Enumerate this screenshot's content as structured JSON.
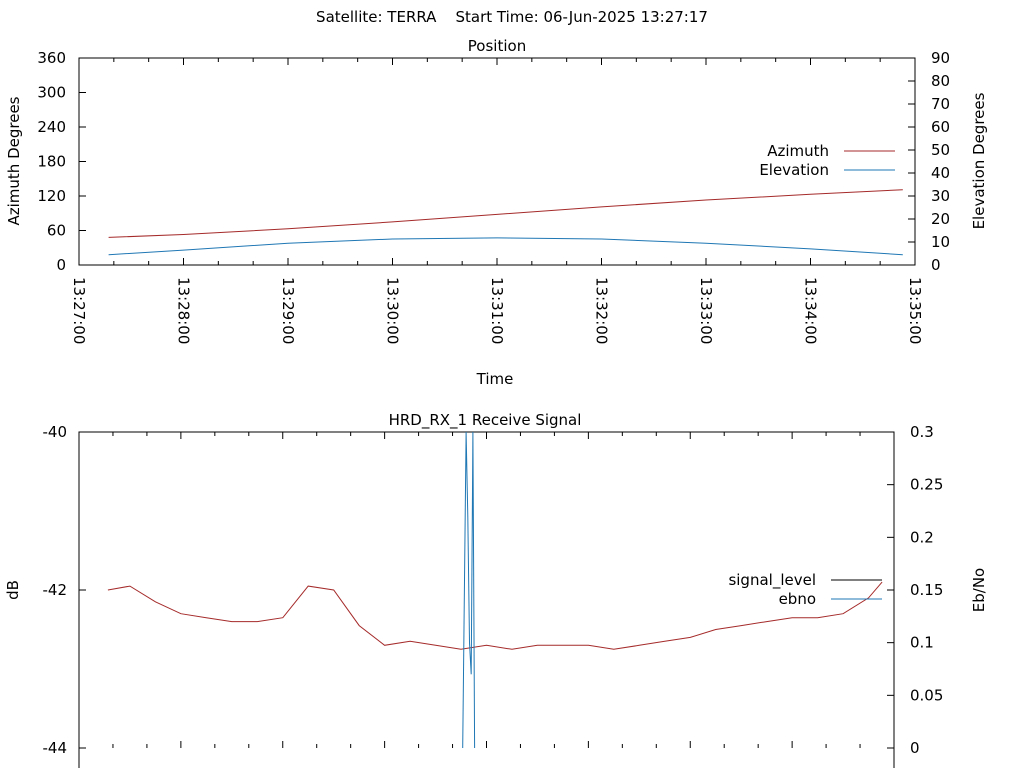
{
  "header": {
    "title": "Satellite: TERRA    Start Time: 06-Jun-2025 13:27:17"
  },
  "chart_data": [
    {
      "type": "line",
      "title": "Position",
      "xlabel": "Time",
      "ylabel": "Azimuth Degrees",
      "y2label": "Elevation Degrees",
      "x_ticks": [
        "13:27:00",
        "13:28:00",
        "13:29:00",
        "13:30:00",
        "13:31:00",
        "13:32:00",
        "13:33:00",
        "13:34:00",
        "13:35:00"
      ],
      "xlim": [
        "13:27:00",
        "13:35:00"
      ],
      "ylim": [
        0,
        360
      ],
      "y_ticks": [
        0,
        60,
        120,
        180,
        240,
        300,
        360
      ],
      "y2lim": [
        0,
        90
      ],
      "y2_ticks": [
        0,
        10,
        20,
        30,
        40,
        50,
        60,
        70,
        80,
        90
      ],
      "legend_position": "right",
      "series": [
        {
          "name": "Azimuth",
          "axis": "y",
          "color": "#a52a2a",
          "x": [
            "13:27:17",
            "13:28:00",
            "13:29:00",
            "13:30:00",
            "13:31:00",
            "13:32:00",
            "13:33:00",
            "13:34:00",
            "13:34:53"
          ],
          "y": [
            48,
            53,
            63,
            75,
            88,
            101,
            113,
            123,
            131
          ]
        },
        {
          "name": "Elevation",
          "axis": "y2",
          "color": "#1f77b4",
          "x": [
            "13:27:17",
            "13:28:00",
            "13:29:00",
            "13:30:00",
            "13:31:00",
            "13:32:00",
            "13:33:00",
            "13:34:00",
            "13:34:53"
          ],
          "y": [
            4.5,
            6.5,
            9.5,
            11.3,
            11.8,
            11.3,
            9.5,
            7,
            4.5
          ]
        }
      ]
    },
    {
      "type": "line",
      "title": "HRD_RX_1 Receive Signal",
      "ylabel": "dB",
      "y2label": "Eb/No",
      "ylim": [
        -44,
        -40
      ],
      "y_ticks": [
        -44,
        -42,
        -40
      ],
      "y2lim": [
        0,
        0.3
      ],
      "y2_ticks": [
        0,
        0.05,
        0.1,
        0.15,
        0.2,
        0.25,
        0.3
      ],
      "legend_position": "right",
      "series": [
        {
          "name": "signal_level",
          "axis": "y",
          "color": "#a52a2a",
          "x": [
            "13:27:17",
            "13:27:30",
            "13:27:45",
            "13:28:00",
            "13:28:15",
            "13:28:30",
            "13:28:45",
            "13:29:00",
            "13:29:15",
            "13:29:30",
            "13:29:45",
            "13:30:00",
            "13:30:15",
            "13:30:30",
            "13:30:45",
            "13:31:00",
            "13:31:15",
            "13:31:30",
            "13:31:45",
            "13:32:00",
            "13:32:15",
            "13:32:30",
            "13:32:45",
            "13:33:00",
            "13:33:15",
            "13:33:30",
            "13:33:45",
            "13:34:00",
            "13:34:15",
            "13:34:30",
            "13:34:45",
            "13:34:53"
          ],
          "y": [
            -42.0,
            -41.95,
            -42.15,
            -42.3,
            -42.35,
            -42.4,
            -42.4,
            -42.35,
            -41.95,
            -42.0,
            -42.45,
            -42.7,
            -42.65,
            -42.7,
            -42.75,
            -42.7,
            -42.75,
            -42.7,
            -42.7,
            -42.7,
            -42.75,
            -42.7,
            -42.65,
            -42.6,
            -42.5,
            -42.45,
            -42.4,
            -42.35,
            -42.35,
            -42.3,
            -42.1,
            -41.9
          ]
        },
        {
          "name": "ebno",
          "axis": "y2",
          "color": "#1f77b4",
          "x": [
            "13:30:46",
            "13:30:48",
            "13:30:49",
            "13:30:50",
            "13:30:51",
            "13:30:52",
            "13:30:53"
          ],
          "y": [
            0,
            0.3,
            0.22,
            0.1,
            0.07,
            0.3,
            0
          ]
        }
      ]
    }
  ]
}
